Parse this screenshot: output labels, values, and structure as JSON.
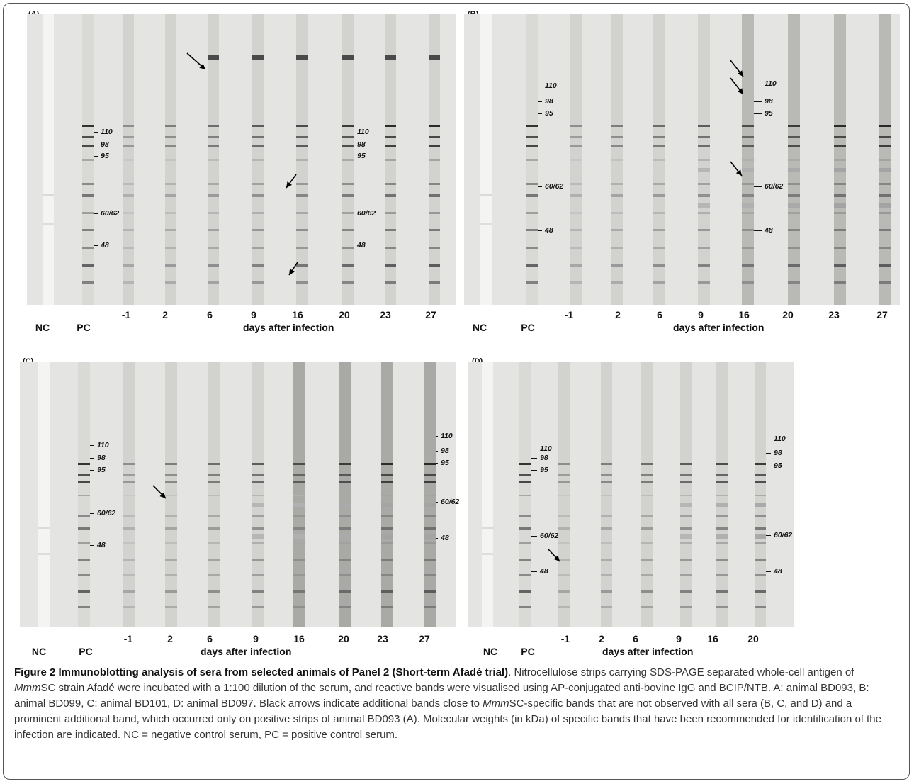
{
  "panels": [
    {
      "letter": "(A)",
      "lane_labels": [
        "NC",
        "PC",
        "-1",
        "2",
        "6",
        "9",
        "16",
        "20",
        "23",
        "27"
      ],
      "axis_title": "days after infection",
      "mw_labels": [
        "110",
        "98",
        "95",
        "60/62",
        "48"
      ]
    },
    {
      "letter": "(B)",
      "lane_labels": [
        "NC",
        "PC",
        "-1",
        "2",
        "6",
        "9",
        "16",
        "20",
        "23",
        "27"
      ],
      "axis_title": "days after infection",
      "mw_labels": [
        "110",
        "98",
        "95",
        "60/62",
        "48"
      ]
    },
    {
      "letter": "(C)",
      "lane_labels": [
        "NC",
        "PC",
        "-1",
        "2",
        "6",
        "9",
        "16",
        "20",
        "23",
        "27"
      ],
      "axis_title": "days after infection",
      "mw_labels": [
        "110",
        "98",
        "95",
        "60/62",
        "48"
      ]
    },
    {
      "letter": "(D)",
      "lane_labels": [
        "NC",
        "PC",
        "-1",
        "2",
        "6",
        "9",
        "16",
        "20"
      ],
      "axis_title": "days after infection",
      "mw_labels": [
        "110",
        "98",
        "95",
        "60/62",
        "48"
      ]
    }
  ],
  "caption": {
    "title": "Figure 2 Immunoblotting analysis of sera from selected animals of Panel 2 (Short-term Afadé trial)",
    "text_1": ". Nitrocellulose strips carrying SDS-PAGE separated whole-cell antigen of ",
    "italic_1": "Mmm",
    "text_2": "SC strain Afadé were incubated with a 1:100 dilution of the serum, and reactive bands were visualised using AP-conjugated anti-bovine IgG and BCIP/NTB. A: animal BD093, B: animal BD099, C: animal BD101, D: animal BD097. Black arrows indicate additional bands close to ",
    "italic_2": "Mmm",
    "text_3": "SC-specific bands that are not observed with all sera (B, C, and D) and a prominent additional band, which occurred only on positive strips of animal BD093 (A). Molecular weights (in kDa) of specific bands that have been recommended for identification of the infection are indicated. NC = negative control serum, PC = positive control serum."
  }
}
